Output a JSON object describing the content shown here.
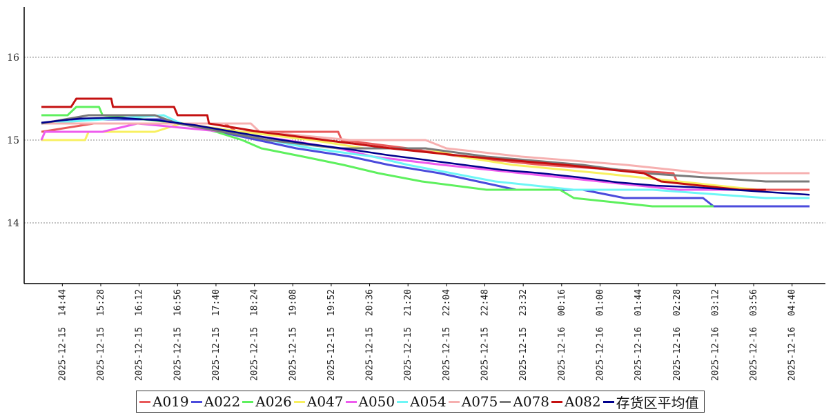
{
  "chart_data": {
    "type": "line",
    "title": "",
    "xlabel": "",
    "ylabel": "",
    "ylim": [
      13.3,
      16.6
    ],
    "yticks": [
      14,
      15,
      16
    ],
    "grid": "horizontal dotted",
    "legend_position": "bottom",
    "x_start": "2025-12-15 14:20",
    "x_end": "2025-12-16 05:00",
    "xtick_labels": [
      "2025-12-15 14:44",
      "2025-12-15 15:28",
      "2025-12-15 16:12",
      "2025-12-15 16:56",
      "2025-12-15 17:40",
      "2025-12-15 18:24",
      "2025-12-15 19:08",
      "2025-12-15 19:52",
      "2025-12-15 20:36",
      "2025-12-15 21:20",
      "2025-12-15 22:04",
      "2025-12-15 22:48",
      "2025-12-15 23:32",
      "2025-12-16 00:16",
      "2025-12-16 01:00",
      "2025-12-16 01:44",
      "2025-12-16 02:28",
      "2025-12-16 03:12",
      "2025-12-16 03:56",
      "2025-12-16 04:40"
    ],
    "series": [
      {
        "name": "A019",
        "color": "#e8595a",
        "points": [
          [
            "2025-12-15 14:20",
            15.1
          ],
          [
            "2025-12-15 15:20",
            15.2
          ],
          [
            "2025-12-15 17:50",
            15.2
          ],
          [
            "2025-12-15 18:04",
            15.1
          ],
          [
            "2025-12-15 20:00",
            15.1
          ],
          [
            "2025-12-15 20:04",
            15.0
          ],
          [
            "2025-12-15 21:20",
            14.9
          ],
          [
            "2025-12-15 22:20",
            14.8
          ],
          [
            "2025-12-15 23:54",
            14.7
          ],
          [
            "2025-12-16 02:24",
            14.6
          ],
          [
            "2025-12-16 02:28",
            14.5
          ],
          [
            "2025-12-16 03:44",
            14.4
          ],
          [
            "2025-12-16 05:00",
            14.4
          ]
        ]
      },
      {
        "name": "A022",
        "color": "#4b4bdc",
        "points": [
          [
            "2025-12-15 14:20",
            15.2
          ],
          [
            "2025-12-15 14:48",
            15.25
          ],
          [
            "2025-12-15 16:40",
            15.25
          ],
          [
            "2025-12-15 17:44",
            15.1
          ],
          [
            "2025-12-15 18:28",
            15.0
          ],
          [
            "2025-12-15 19:12",
            14.9
          ],
          [
            "2025-12-15 20:14",
            14.8
          ],
          [
            "2025-12-15 20:58",
            14.7
          ],
          [
            "2025-12-15 21:56",
            14.6
          ],
          [
            "2025-12-15 22:40",
            14.5
          ],
          [
            "2025-12-15 23:24",
            14.4
          ],
          [
            "2025-12-16 00:40",
            14.4
          ],
          [
            "2025-12-16 01:28",
            14.3
          ],
          [
            "2025-12-16 02:58",
            14.3
          ],
          [
            "2025-12-16 03:10",
            14.2
          ],
          [
            "2025-12-16 05:00",
            14.2
          ]
        ]
      },
      {
        "name": "A026",
        "color": "#5ef05e",
        "points": [
          [
            "2025-12-15 14:20",
            15.3
          ],
          [
            "2025-12-15 14:50",
            15.3
          ],
          [
            "2025-12-15 15:00",
            15.4
          ],
          [
            "2025-12-15 15:26",
            15.4
          ],
          [
            "2025-12-15 15:30",
            15.3
          ],
          [
            "2025-12-15 17:04",
            15.2
          ],
          [
            "2025-12-15 17:40",
            15.1
          ],
          [
            "2025-12-15 18:10",
            15.0
          ],
          [
            "2025-12-15 18:32",
            14.9
          ],
          [
            "2025-12-15 19:20",
            14.8
          ],
          [
            "2025-12-15 20:06",
            14.7
          ],
          [
            "2025-12-15 20:46",
            14.6
          ],
          [
            "2025-12-15 21:36",
            14.5
          ],
          [
            "2025-12-15 22:50",
            14.4
          ],
          [
            "2025-12-16 00:14",
            14.4
          ],
          [
            "2025-12-16 00:30",
            14.3
          ],
          [
            "2025-12-16 02:00",
            14.2
          ],
          [
            "2025-12-16 03:10",
            14.2
          ]
        ]
      },
      {
        "name": "A047",
        "color": "#f8f060",
        "points": [
          [
            "2025-12-15 14:20",
            15.0
          ],
          [
            "2025-12-15 15:10",
            15.0
          ],
          [
            "2025-12-15 15:14",
            15.1
          ],
          [
            "2025-12-15 16:30",
            15.1
          ],
          [
            "2025-12-15 17:00",
            15.2
          ],
          [
            "2025-12-15 18:10",
            15.1
          ],
          [
            "2025-12-15 19:30",
            15.0
          ],
          [
            "2025-12-15 20:30",
            14.9
          ],
          [
            "2025-12-15 21:40",
            14.9
          ],
          [
            "2025-12-15 22:20",
            14.8
          ],
          [
            "2025-12-15 23:20",
            14.7
          ],
          [
            "2025-12-16 01:00",
            14.6
          ],
          [
            "2025-12-16 02:30",
            14.5
          ],
          [
            "2025-12-16 04:00",
            14.4
          ]
        ]
      },
      {
        "name": "A050",
        "color": "#ee5cee",
        "points": [
          [
            "2025-12-15 14:20",
            15.0
          ],
          [
            "2025-12-15 14:24",
            15.1
          ],
          [
            "2025-12-15 15:30",
            15.1
          ],
          [
            "2025-12-15 16:10",
            15.2
          ],
          [
            "2025-12-15 17:50",
            15.1
          ],
          [
            "2025-12-15 19:00",
            15.0
          ],
          [
            "2025-12-15 20:00",
            14.9
          ],
          [
            "2025-12-15 20:40",
            14.8
          ],
          [
            "2025-12-15 22:00",
            14.7
          ],
          [
            "2025-12-15 23:30",
            14.6
          ],
          [
            "2025-12-16 01:00",
            14.5
          ],
          [
            "2025-12-16 02:30",
            14.4
          ],
          [
            "2025-12-16 04:00",
            14.4
          ]
        ]
      },
      {
        "name": "A054",
        "color": "#6ef6f6",
        "points": [
          [
            "2025-12-15 14:20",
            15.2
          ],
          [
            "2025-12-15 16:40",
            15.3
          ],
          [
            "2025-12-15 17:00",
            15.2
          ],
          [
            "2025-12-15 17:50",
            15.1
          ],
          [
            "2025-12-15 18:40",
            15.0
          ],
          [
            "2025-12-15 19:30",
            14.9
          ],
          [
            "2025-12-15 20:40",
            14.8
          ],
          [
            "2025-12-15 21:20",
            14.7
          ],
          [
            "2025-12-15 22:10",
            14.6
          ],
          [
            "2025-12-15 23:00",
            14.5
          ],
          [
            "2025-12-16 00:30",
            14.4
          ],
          [
            "2025-12-16 02:00",
            14.4
          ],
          [
            "2025-12-16 04:10",
            14.3
          ],
          [
            "2025-12-16 05:00",
            14.3
          ]
        ]
      },
      {
        "name": "A075",
        "color": "#f6b0b0",
        "points": [
          [
            "2025-12-15 14:20",
            15.2
          ],
          [
            "2025-12-15 17:00",
            15.2
          ],
          [
            "2025-12-15 18:20",
            15.2
          ],
          [
            "2025-12-15 18:30",
            15.1
          ],
          [
            "2025-12-15 20:14",
            15.0
          ],
          [
            "2025-12-15 21:40",
            15.0
          ],
          [
            "2025-12-15 22:04",
            14.9
          ],
          [
            "2025-12-15 23:30",
            14.8
          ],
          [
            "2025-12-16 01:30",
            14.7
          ],
          [
            "2025-12-16 03:00",
            14.6
          ],
          [
            "2025-12-16 05:00",
            14.6
          ]
        ]
      },
      {
        "name": "A078",
        "color": "#7a7a7a",
        "points": [
          [
            "2025-12-15 14:20",
            15.2
          ],
          [
            "2025-12-15 15:14",
            15.3
          ],
          [
            "2025-12-15 16:30",
            15.3
          ],
          [
            "2025-12-15 16:56",
            15.2
          ],
          [
            "2025-12-15 18:40",
            15.0
          ],
          [
            "2025-12-15 20:00",
            14.9
          ],
          [
            "2025-12-15 21:40",
            14.9
          ],
          [
            "2025-12-15 22:50",
            14.8
          ],
          [
            "2025-12-16 00:40",
            14.7
          ],
          [
            "2025-12-16 01:50",
            14.6
          ],
          [
            "2025-12-16 04:10",
            14.5
          ],
          [
            "2025-12-16 05:00",
            14.5
          ]
        ]
      },
      {
        "name": "A082",
        "color": "#c41010",
        "points": [
          [
            "2025-12-15 14:20",
            15.4
          ],
          [
            "2025-12-15 14:54",
            15.4
          ],
          [
            "2025-12-15 15:00",
            15.5
          ],
          [
            "2025-12-15 15:40",
            15.5
          ],
          [
            "2025-12-15 15:42",
            15.4
          ],
          [
            "2025-12-15 16:52",
            15.4
          ],
          [
            "2025-12-15 16:56",
            15.3
          ],
          [
            "2025-12-15 17:30",
            15.3
          ],
          [
            "2025-12-15 17:32",
            15.2
          ],
          [
            "2025-12-15 18:30",
            15.1
          ],
          [
            "2025-12-15 21:00",
            14.9
          ],
          [
            "2025-12-15 22:30",
            14.8
          ],
          [
            "2025-12-16 00:20",
            14.7
          ],
          [
            "2025-12-16 01:50",
            14.6
          ],
          [
            "2025-12-16 02:10",
            14.5
          ],
          [
            "2025-12-16 03:40",
            14.4
          ],
          [
            "2025-12-16 04:10",
            14.4
          ]
        ]
      },
      {
        "name": "存货区平均值",
        "color": "#00008c",
        "points": [
          [
            "2025-12-15 14:20",
            15.21
          ],
          [
            "2025-12-15 15:04",
            15.26
          ],
          [
            "2025-12-15 15:48",
            15.27
          ],
          [
            "2025-12-15 16:32",
            15.24
          ],
          [
            "2025-12-15 17:16",
            15.18
          ],
          [
            "2025-12-15 18:00",
            15.1
          ],
          [
            "2025-12-15 18:44",
            15.02
          ],
          [
            "2025-12-15 19:28",
            14.95
          ],
          [
            "2025-12-15 20:12",
            14.89
          ],
          [
            "2025-12-15 20:56",
            14.82
          ],
          [
            "2025-12-15 21:40",
            14.76
          ],
          [
            "2025-12-15 22:24",
            14.7
          ],
          [
            "2025-12-15 23:08",
            14.64
          ],
          [
            "2025-12-15 23:52",
            14.6
          ],
          [
            "2025-12-16 00:36",
            14.55
          ],
          [
            "2025-12-16 01:20",
            14.49
          ],
          [
            "2025-12-16 02:04",
            14.45
          ],
          [
            "2025-12-16 02:48",
            14.43
          ],
          [
            "2025-12-16 03:32",
            14.4
          ],
          [
            "2025-12-16 04:16",
            14.37
          ],
          [
            "2025-12-16 05:00",
            14.34
          ]
        ]
      }
    ]
  }
}
